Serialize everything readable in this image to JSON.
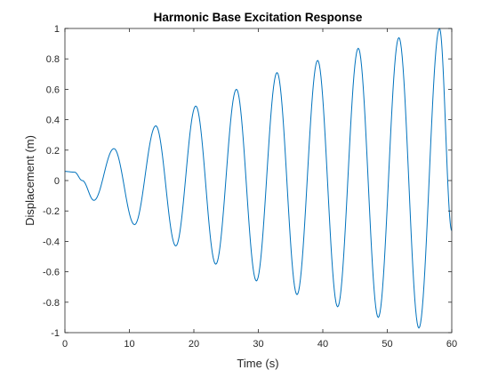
{
  "chart_data": {
    "type": "line",
    "title": "Harmonic Base Excitation Response",
    "xlabel": "Time (s)",
    "ylabel": "Displacement (m)",
    "xlim": [
      0,
      60
    ],
    "ylim": [
      -1,
      1
    ],
    "grid": false,
    "legend": "none",
    "xticks": [
      0,
      10,
      20,
      30,
      40,
      50,
      60
    ],
    "xtick_labels": [
      "0",
      "10",
      "20",
      "30",
      "40",
      "50",
      "60"
    ],
    "yticks": [
      -1,
      -0.8,
      -0.6,
      -0.4,
      -0.2,
      0,
      0.2,
      0.4,
      0.6,
      0.8,
      1
    ],
    "ytick_labels": [
      "-1",
      "-0.8",
      "-0.6",
      "-0.4",
      "-0.2",
      "0",
      "0.2",
      "0.4",
      "0.6",
      "0.8",
      "1"
    ],
    "series": [
      {
        "color": "#0072BD",
        "x": [
          0,
          1.5,
          2.7,
          4.5,
          7.6,
          10.8,
          14.1,
          17.2,
          20.3,
          23.4,
          26.6,
          29.7,
          32.9,
          36.0,
          39.2,
          42.3,
          45.5,
          48.6,
          51.8,
          54.9,
          58.1,
          60
        ],
        "y": [
          0.06,
          0.055,
          0.0,
          -0.13,
          0.21,
          -0.29,
          0.36,
          -0.43,
          0.49,
          -0.55,
          0.6,
          -0.66,
          0.71,
          -0.75,
          0.79,
          -0.83,
          0.87,
          -0.9,
          0.94,
          -0.97,
          1.0,
          -0.33
        ]
      }
    ]
  }
}
